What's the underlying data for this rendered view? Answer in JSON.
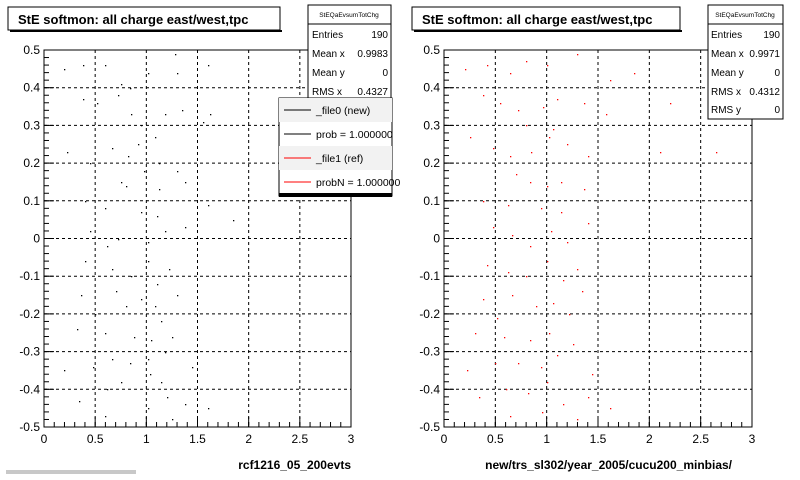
{
  "panels": [
    {
      "title": "StE softmon: all charge east/west,tpc",
      "xlabel": "rcf1216_05_200evts",
      "stats": {
        "name": "StEQaEvsumTotChg",
        "rows": [
          {
            "label": "Entries",
            "value": "190"
          },
          {
            "label": "Mean x",
            "value": "0.9983"
          },
          {
            "label": "Mean y",
            "value": "0"
          },
          {
            "label": "RMS x",
            "value": "0.4327"
          }
        ]
      },
      "legend": [
        {
          "label": "_file0 (new)",
          "color": "#000000"
        },
        {
          "label": "prob = 1.000000",
          "color": "#000000"
        },
        {
          "label": "_file1 (ref)",
          "color": "#ff0000"
        },
        {
          "label": "probN = 1.000000",
          "color": "#ff0000"
        }
      ],
      "marker_color": "#000000"
    },
    {
      "title": "StE softmon: all charge east/west,tpc",
      "xlabel": "new/trs_sl302/year_2005/cucu200_minbias/",
      "stats": {
        "name": "StEQaEvsumTotChg",
        "rows": [
          {
            "label": "Entries",
            "value": "190"
          },
          {
            "label": "Mean x",
            "value": "0.9971"
          },
          {
            "label": "Mean y",
            "value": "0"
          },
          {
            "label": "RMS x",
            "value": "0.4312"
          },
          {
            "label": "RMS y",
            "value": "0"
          }
        ]
      },
      "legend": [],
      "marker_color": "#ff0000"
    }
  ],
  "chart_data": [
    {
      "type": "scatter",
      "title": "StE softmon: all charge east/west,tpc",
      "xlabel": "rcf1216_05_200evts",
      "ylabel": "",
      "xlim": [
        0,
        3
      ],
      "ylim": [
        -0.5,
        0.5
      ],
      "xticks": [
        0,
        0.5,
        1,
        1.5,
        2,
        2.5,
        3
      ],
      "yticks": [
        -0.5,
        -0.4,
        -0.3,
        -0.2,
        -0.1,
        0,
        0.1,
        0.2,
        0.3,
        0.4,
        0.5
      ],
      "grid": true,
      "legend_position": "top-right",
      "series": [
        {
          "color": "#000000",
          "points": [
            [
              0.2,
              0.45
            ],
            [
              0.38,
              0.46
            ],
            [
              0.6,
              0.46
            ],
            [
              0.75,
              0.41
            ],
            [
              0.84,
              0.4
            ],
            [
              1.02,
              0.44
            ],
            [
              1.28,
              0.49
            ],
            [
              1.3,
              0.44
            ],
            [
              1.6,
              0.46
            ],
            [
              0.38,
              0.37
            ],
            [
              0.52,
              0.36
            ],
            [
              0.72,
              0.38
            ],
            [
              0.95,
              0.3
            ],
            [
              1.18,
              0.33
            ],
            [
              1.35,
              0.34
            ],
            [
              1.62,
              0.33
            ],
            [
              1.55,
              0.31
            ],
            [
              0.22,
              0.23
            ],
            [
              0.45,
              0.2
            ],
            [
              0.66,
              0.24
            ],
            [
              0.82,
              0.22
            ],
            [
              0.92,
              0.25
            ],
            [
              0.98,
              0.18
            ],
            [
              1.12,
              0.2
            ],
            [
              1.3,
              0.18
            ],
            [
              0.75,
              0.15
            ],
            [
              0.8,
              0.14
            ],
            [
              1.12,
              0.13
            ],
            [
              1.38,
              0.15
            ],
            [
              0.4,
              0.1
            ],
            [
              0.6,
              0.08
            ],
            [
              0.95,
              0.07
            ],
            [
              1.1,
              0.06
            ],
            [
              1.6,
              0.09
            ],
            [
              1.85,
              0.05
            ],
            [
              0.45,
              0.02
            ],
            [
              0.62,
              -0.02
            ],
            [
              0.72,
              0.0
            ],
            [
              1.02,
              -0.01
            ],
            [
              1.18,
              0.02
            ],
            [
              1.38,
              0.03
            ],
            [
              0.4,
              -0.06
            ],
            [
              0.66,
              -0.08
            ],
            [
              0.85,
              -0.1
            ],
            [
              1.02,
              -0.06
            ],
            [
              1.1,
              -0.12
            ],
            [
              1.22,
              -0.08
            ],
            [
              0.36,
              -0.15
            ],
            [
              0.7,
              -0.14
            ],
            [
              0.8,
              -0.18
            ],
            [
              0.95,
              -0.16
            ],
            [
              1.08,
              -0.18
            ],
            [
              1.14,
              -0.22
            ],
            [
              0.32,
              -0.24
            ],
            [
              0.6,
              -0.25
            ],
            [
              0.88,
              -0.26
            ],
            [
              1.05,
              -0.27
            ],
            [
              1.25,
              -0.26
            ],
            [
              0.2,
              -0.35
            ],
            [
              0.48,
              -0.34
            ],
            [
              0.66,
              -0.32
            ],
            [
              0.84,
              -0.33
            ],
            [
              1.02,
              -0.32
            ],
            [
              1.18,
              -0.3
            ],
            [
              1.45,
              -0.34
            ],
            [
              0.34,
              -0.43
            ],
            [
              0.62,
              -0.4
            ],
            [
              0.75,
              -0.38
            ],
            [
              1.04,
              -0.36
            ],
            [
              1.14,
              -0.38
            ],
            [
              1.2,
              -0.42
            ],
            [
              1.38,
              -0.44
            ],
            [
              1.6,
              -0.45
            ],
            [
              0.6,
              -0.47
            ],
            [
              1.02,
              -0.45
            ],
            [
              1.25,
              -0.48
            ],
            [
              0.85,
              0.33
            ],
            [
              1.08,
              0.27
            ],
            [
              0.5,
              -0.2
            ],
            [
              1.3,
              -0.15
            ]
          ]
        }
      ]
    },
    {
      "type": "scatter",
      "title": "StE softmon: all charge east/west,tpc",
      "xlabel": "new/trs_sl302/year_2005/cucu200_minbias/",
      "ylabel": "",
      "xlim": [
        0,
        3
      ],
      "ylim": [
        -0.5,
        0.5
      ],
      "xticks": [
        0,
        0.5,
        1,
        1.5,
        2,
        2.5,
        3
      ],
      "yticks": [
        -0.5,
        -0.4,
        -0.3,
        -0.2,
        -0.1,
        0,
        0.1,
        0.2,
        0.3,
        0.4,
        0.5
      ],
      "grid": true,
      "series": [
        {
          "color": "#ff0000",
          "points": [
            [
              0.2,
              0.45
            ],
            [
              0.42,
              0.46
            ],
            [
              0.64,
              0.44
            ],
            [
              0.8,
              0.47
            ],
            [
              1.0,
              0.46
            ],
            [
              1.3,
              0.49
            ],
            [
              1.62,
              0.42
            ],
            [
              1.85,
              0.44
            ],
            [
              0.38,
              0.38
            ],
            [
              0.55,
              0.36
            ],
            [
              0.72,
              0.34
            ],
            [
              0.96,
              0.35
            ],
            [
              1.1,
              0.37
            ],
            [
              1.36,
              0.36
            ],
            [
              1.58,
              0.33
            ],
            [
              2.2,
              0.36
            ],
            [
              0.25,
              0.27
            ],
            [
              0.48,
              0.24
            ],
            [
              0.64,
              0.22
            ],
            [
              0.85,
              0.23
            ],
            [
              1.02,
              0.27
            ],
            [
              1.2,
              0.25
            ],
            [
              1.4,
              0.22
            ],
            [
              2.1,
              0.23
            ],
            [
              2.65,
              0.23
            ],
            [
              0.7,
              0.17
            ],
            [
              0.84,
              0.15
            ],
            [
              1.0,
              0.14
            ],
            [
              1.14,
              0.15
            ],
            [
              1.36,
              0.13
            ],
            [
              0.38,
              0.1
            ],
            [
              0.62,
              0.09
            ],
            [
              0.94,
              0.08
            ],
            [
              1.14,
              0.07
            ],
            [
              0.48,
              0.03
            ],
            [
              0.66,
              0.01
            ],
            [
              0.84,
              -0.02
            ],
            [
              1.04,
              0.02
            ],
            [
              1.2,
              -0.01
            ],
            [
              1.4,
              0.04
            ],
            [
              0.42,
              -0.07
            ],
            [
              0.62,
              -0.09
            ],
            [
              0.8,
              -0.1
            ],
            [
              1.0,
              -0.06
            ],
            [
              1.16,
              -0.11
            ],
            [
              1.3,
              -0.08
            ],
            [
              0.38,
              -0.16
            ],
            [
              0.66,
              -0.15
            ],
            [
              0.9,
              -0.18
            ],
            [
              1.06,
              -0.17
            ],
            [
              1.22,
              -0.2
            ],
            [
              0.3,
              -0.25
            ],
            [
              0.58,
              -0.26
            ],
            [
              0.84,
              -0.27
            ],
            [
              1.02,
              -0.25
            ],
            [
              1.26,
              -0.28
            ],
            [
              0.22,
              -0.35
            ],
            [
              0.5,
              -0.33
            ],
            [
              0.72,
              -0.33
            ],
            [
              0.94,
              -0.34
            ],
            [
              1.1,
              -0.31
            ],
            [
              1.44,
              -0.36
            ],
            [
              0.34,
              -0.42
            ],
            [
              0.6,
              -0.4
            ],
            [
              0.82,
              -0.41
            ],
            [
              1.0,
              -0.38
            ],
            [
              1.16,
              -0.44
            ],
            [
              1.4,
              -0.42
            ],
            [
              1.62,
              -0.45
            ],
            [
              0.64,
              -0.47
            ],
            [
              0.95,
              -0.46
            ],
            [
              1.3,
              -0.48
            ],
            [
              0.8,
              0.3
            ],
            [
              1.06,
              0.29
            ],
            [
              0.52,
              -0.21
            ],
            [
              1.34,
              -0.14
            ]
          ]
        }
      ]
    }
  ]
}
